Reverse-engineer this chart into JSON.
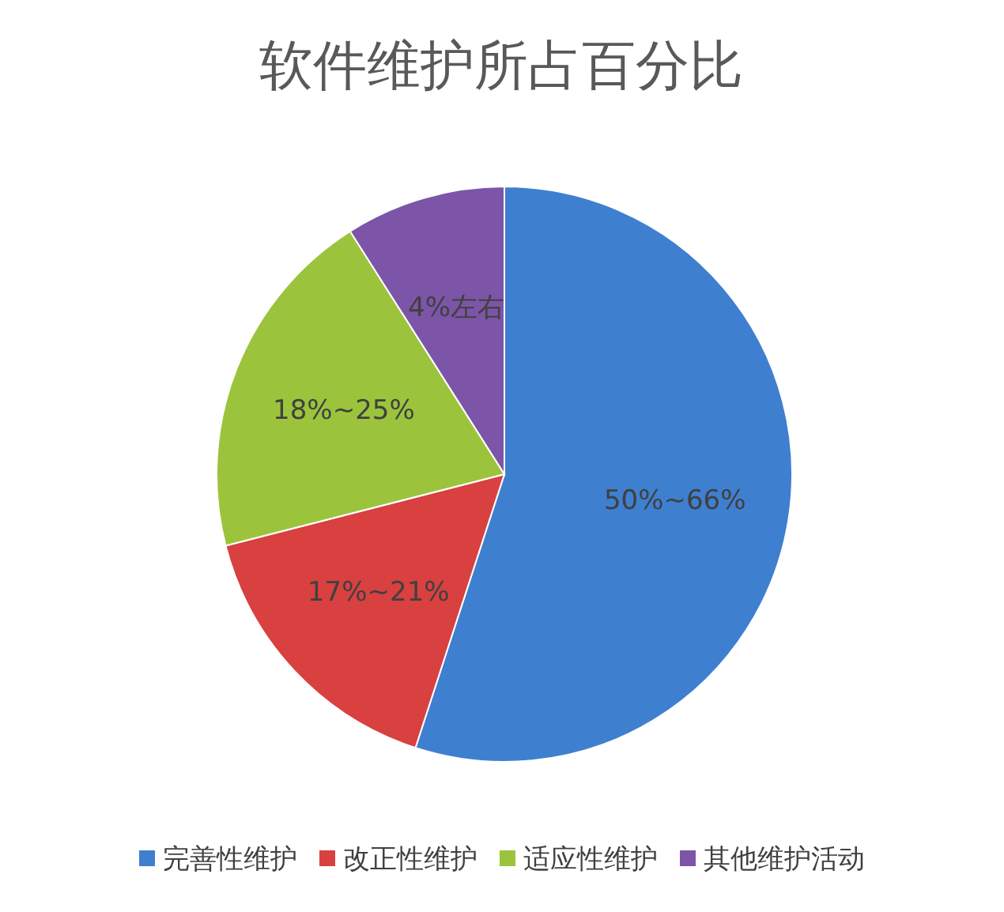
{
  "chart_data": {
    "type": "pie",
    "title": "软件维护所占百分比",
    "categories": [
      "完善性维护",
      "改正性维护",
      "适应性维护",
      "其他维护活动"
    ],
    "values": [
      55,
      16,
      20,
      9
    ],
    "annotations": [
      "50%~66%",
      "17%~21%",
      "18%~25%",
      "4%左右"
    ],
    "colors": [
      "#3f7fd0",
      "#d94040",
      "#9bc43c",
      "#7c55a8"
    ],
    "legend": "bottom"
  }
}
